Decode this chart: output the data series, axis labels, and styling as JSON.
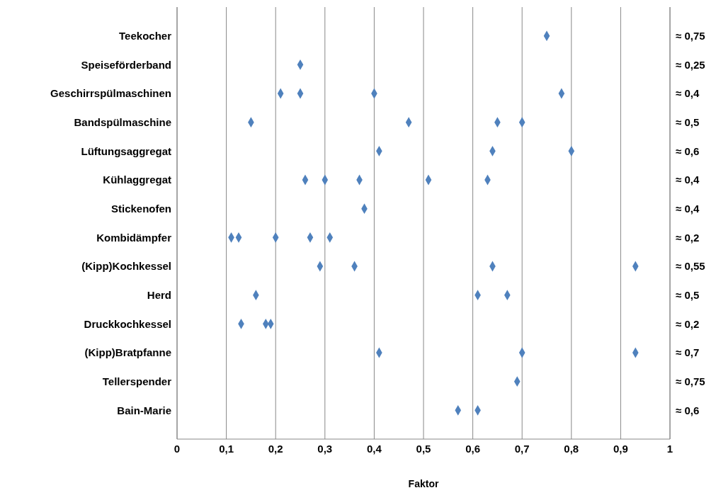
{
  "chart_data": {
    "type": "scatter",
    "orientation": "horizontal",
    "xlabel": "Faktor",
    "categories": [
      "Teekocher",
      "Speiseförderband",
      "Geschirrspülmaschinen",
      "Bandspülmaschine",
      "Lüftungsaggregat",
      "Kühlaggregat",
      "Stickenofen",
      "Kombidämpfer",
      "(Kipp)Kochkessel",
      "Herd",
      "Druckkochkessel",
      "(Kipp)Bratpfanne",
      "Tellerspender",
      "Bain-Marie"
    ],
    "series": [
      {
        "color": "#4f81bd",
        "values": [
          0.75,
          0.25,
          0.21,
          0.15,
          0.41,
          0.26,
          0.38,
          0.11,
          0.29,
          0.16,
          0.13,
          0.41,
          0.69,
          0.57
        ]
      },
      {
        "color": "#4f81bd",
        "values": [
          null,
          null,
          0.25,
          0.47,
          0.64,
          0.3,
          null,
          0.125,
          0.36,
          0.61,
          0.18,
          0.7,
          null,
          0.61
        ]
      },
      {
        "color": "#4f81bd",
        "values": [
          null,
          null,
          0.4,
          0.65,
          0.8,
          0.37,
          null,
          0.2,
          0.64,
          0.67,
          0.19,
          0.93,
          null,
          null
        ]
      },
      {
        "color": "#4f81bd",
        "values": [
          null,
          null,
          0.78,
          0.7,
          null,
          0.51,
          null,
          0.27,
          0.93,
          null,
          null,
          null,
          null,
          null
        ]
      },
      {
        "color": "#4f81bd",
        "values": [
          null,
          null,
          null,
          null,
          null,
          0.63,
          null,
          0.31,
          null,
          null,
          null,
          null,
          null,
          null
        ]
      }
    ],
    "xlim": [
      0,
      1
    ],
    "xticks": [
      {
        "value": 0,
        "label": "0"
      },
      {
        "value": 0.1,
        "label": "0,1"
      },
      {
        "value": 0.2,
        "label": "0,2"
      },
      {
        "value": 0.3,
        "label": "0,3"
      },
      {
        "value": 0.4,
        "label": "0,4"
      },
      {
        "value": 0.5,
        "label": "0,5"
      },
      {
        "value": 0.6,
        "label": "0,6"
      },
      {
        "value": 0.7,
        "label": "0,7"
      },
      {
        "value": 0.8,
        "label": "0,8"
      },
      {
        "value": 0.9,
        "label": "0,9"
      },
      {
        "value": 1,
        "label": "1"
      }
    ],
    "grid": "x",
    "marker": "diamond",
    "legend": false,
    "y2_categories": [
      "≈ 0,75",
      "≈ 0,25",
      "≈ 0,4",
      "≈ 0,5",
      "≈ 0,6",
      "≈ 0,4",
      "≈ 0,4",
      "≈ 0,2",
      "≈ 0,55",
      "≈ 0,5",
      "≈ 0,2",
      "≈ 0,7",
      "≈ 0,75",
      "≈ 0,6"
    ]
  }
}
